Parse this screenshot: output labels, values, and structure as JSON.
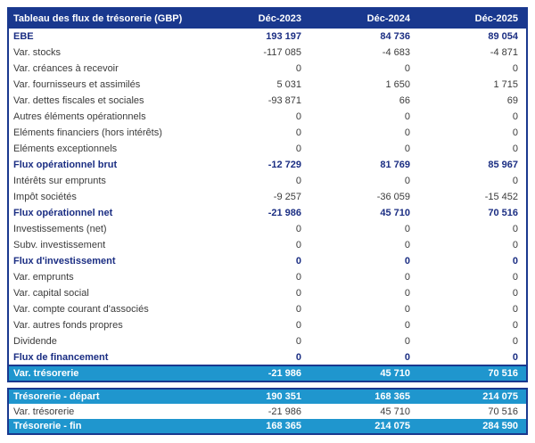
{
  "chart_data": {
    "type": "table",
    "title": "Tableau des flux de trésorerie (GBP)",
    "columns": [
      "Déc-2023",
      "Déc-2024",
      "Déc-2025"
    ],
    "rows": [
      {
        "label": "EBE",
        "values": [
          "193 197",
          "84 736",
          "89 054"
        ],
        "style": "bold"
      },
      {
        "label": "Var. stocks",
        "values": [
          "-117 085",
          "-4 683",
          "-4 871"
        ],
        "style": "normal"
      },
      {
        "label": "Var. créances à recevoir",
        "values": [
          "0",
          "0",
          "0"
        ],
        "style": "normal"
      },
      {
        "label": "Var. fournisseurs et assimilés",
        "values": [
          "5 031",
          "1 650",
          "1 715"
        ],
        "style": "normal"
      },
      {
        "label": "Var. dettes fiscales et sociales",
        "values": [
          "-93 871",
          "66",
          "69"
        ],
        "style": "normal"
      },
      {
        "label": "Autres éléments opérationnels",
        "values": [
          "0",
          "0",
          "0"
        ],
        "style": "normal"
      },
      {
        "label": "Eléments financiers (hors intérêts)",
        "values": [
          "0",
          "0",
          "0"
        ],
        "style": "normal"
      },
      {
        "label": "Eléments exceptionnels",
        "values": [
          "0",
          "0",
          "0"
        ],
        "style": "normal"
      },
      {
        "label": "Flux opérationnel brut",
        "values": [
          "-12 729",
          "81 769",
          "85 967"
        ],
        "style": "bold"
      },
      {
        "label": "Intérêts sur emprunts",
        "values": [
          "0",
          "0",
          "0"
        ],
        "style": "normal"
      },
      {
        "label": "Impôt sociétés",
        "values": [
          "-9 257",
          "-36 059",
          "-15 452"
        ],
        "style": "normal"
      },
      {
        "label": "Flux opérationnel net",
        "values": [
          "-21 986",
          "45 710",
          "70 516"
        ],
        "style": "bold"
      },
      {
        "label": "Investissements (net)",
        "values": [
          "0",
          "0",
          "0"
        ],
        "style": "normal"
      },
      {
        "label": "Subv. investissement",
        "values": [
          "0",
          "0",
          "0"
        ],
        "style": "normal"
      },
      {
        "label": "Flux d'investissement",
        "values": [
          "0",
          "0",
          "0"
        ],
        "style": "bold"
      },
      {
        "label": "Var. emprunts",
        "values": [
          "0",
          "0",
          "0"
        ],
        "style": "normal"
      },
      {
        "label": "Var. capital social",
        "values": [
          "0",
          "0",
          "0"
        ],
        "style": "normal"
      },
      {
        "label": "Var. compte courant d'associés",
        "values": [
          "0",
          "0",
          "0"
        ],
        "style": "normal"
      },
      {
        "label": "Var. autres fonds propres",
        "values": [
          "0",
          "0",
          "0"
        ],
        "style": "normal"
      },
      {
        "label": "Dividende",
        "values": [
          "0",
          "0",
          "0"
        ],
        "style": "normal"
      },
      {
        "label": "Flux de financement",
        "values": [
          "0",
          "0",
          "0"
        ],
        "style": "bold"
      },
      {
        "label": "Var. trésorerie",
        "values": [
          "-21 986",
          "45 710",
          "70 516"
        ],
        "style": "highlight"
      }
    ],
    "summary_rows": [
      {
        "label": "Trésorerie - départ",
        "values": [
          "190 351",
          "168 365",
          "214 075"
        ],
        "style": "highlight"
      },
      {
        "label": "Var. trésorerie",
        "values": [
          "-21 986",
          "45 710",
          "70 516"
        ],
        "style": "normal"
      },
      {
        "label": "Trésorerie - fin",
        "values": [
          "168 365",
          "214 075",
          "284 590"
        ],
        "style": "highlight"
      }
    ],
    "layout_hints": {
      "grid": false,
      "value_alignment": "right",
      "currency": "GBP"
    }
  },
  "colors": {
    "header_bg": "#19388E",
    "accent_text": "#1B2E83",
    "highlight_bg": "#1F96CE",
    "body_text": "#3B3B3B",
    "header_text": "#FFFFFF"
  }
}
